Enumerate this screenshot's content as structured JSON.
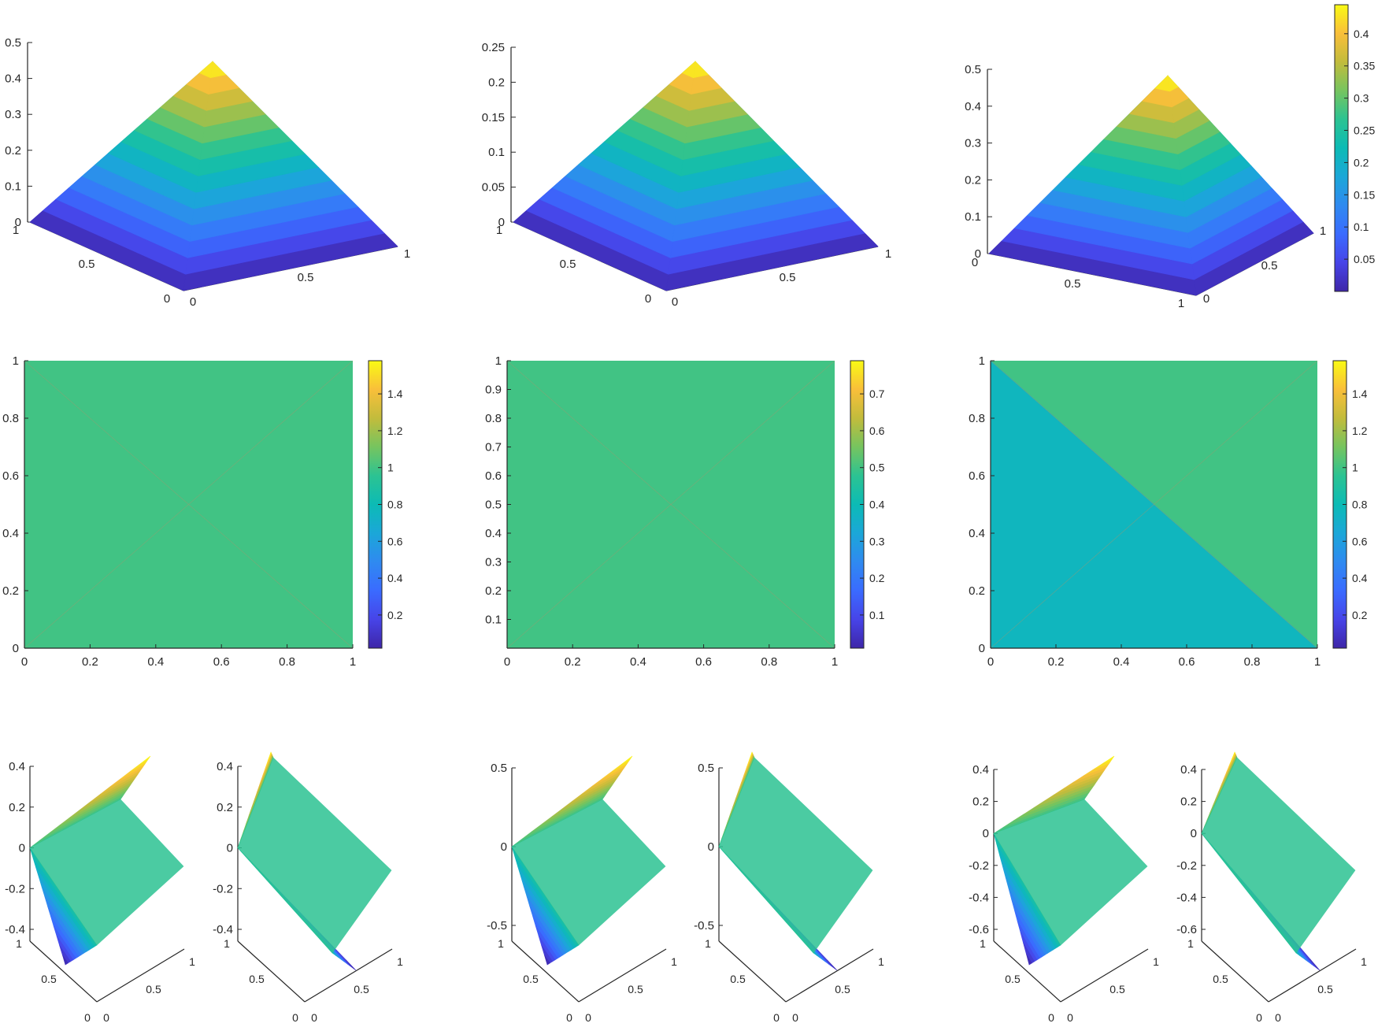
{
  "colormap": [
    "#3e26a8",
    "#4744e8",
    "#3a6bff",
    "#2f8af0",
    "#1ba7d8",
    "#0cbbb5",
    "#2cc392",
    "#76c45f",
    "#c2bc3c",
    "#f9bf3a",
    "#f9fa14"
  ],
  "chart_data": [
    {
      "id": "surf-1",
      "type": "surface",
      "view": "pyramid",
      "zlim": [
        0,
        0.5
      ],
      "zticks": [
        "0",
        "0.1",
        "0.2",
        "0.3",
        "0.4",
        "0.5"
      ],
      "xticks": [
        "0",
        "0.5",
        "1"
      ],
      "yticks": [
        "0",
        "0.5",
        "1"
      ],
      "peak": 0.45,
      "clim": [
        0,
        0.45
      ]
    },
    {
      "id": "surf-2",
      "type": "surface",
      "view": "pyramid",
      "zlim": [
        0,
        0.25
      ],
      "zticks": [
        "0",
        "0.05",
        "0.1",
        "0.15",
        "0.2",
        "0.25"
      ],
      "xticks": [
        "0",
        "0.5",
        "1"
      ],
      "yticks": [
        "0",
        "0.5",
        "1"
      ],
      "peak": 0.225,
      "clim": [
        0,
        0.225
      ]
    },
    {
      "id": "surf-3",
      "type": "surface",
      "view": "pyramid-rotated",
      "zlim": [
        0,
        0.5
      ],
      "zticks": [
        "0",
        "0.1",
        "0.2",
        "0.3",
        "0.4",
        "0.5"
      ],
      "xticks": [
        "0",
        "0.5",
        "1"
      ],
      "yticks": [
        "0",
        "0.5",
        "1"
      ],
      "peak": 0.45,
      "clim": [
        0,
        0.45
      ],
      "colorbar": {
        "ticks": [
          "0.05",
          "0.1",
          "0.15",
          "0.2",
          "0.25",
          "0.3",
          "0.35",
          "0.4"
        ],
        "values": [
          0.05,
          0.1,
          0.15,
          0.2,
          0.25,
          0.3,
          0.35,
          0.4
        ],
        "range": [
          0,
          0.445
        ]
      }
    },
    {
      "id": "map-1",
      "type": "heatmap",
      "xlim": [
        0,
        1
      ],
      "ylim": [
        0,
        1
      ],
      "xticks": [
        "0",
        "0.2",
        "0.4",
        "0.6",
        "0.8",
        "1"
      ],
      "yticks": [
        "0",
        "0.2",
        "0.4",
        "0.6",
        "0.8",
        "1"
      ],
      "fill_value": 1.0,
      "lower_value": null,
      "colorbar": {
        "ticks": [
          "0.2",
          "0.4",
          "0.6",
          "0.8",
          "1",
          "1.2",
          "1.4"
        ],
        "values": [
          0.2,
          0.4,
          0.6,
          0.8,
          1,
          1.2,
          1.4
        ],
        "range": [
          0.02,
          1.58
        ]
      }
    },
    {
      "id": "map-2",
      "type": "heatmap",
      "xlim": [
        0,
        1
      ],
      "ylim": [
        0,
        1
      ],
      "xticks": [
        "0",
        "0.2",
        "0.4",
        "0.6",
        "0.8",
        "1"
      ],
      "yticks": [
        "0.1",
        "0.2",
        "0.3",
        "0.4",
        "0.5",
        "0.6",
        "0.7",
        "0.8",
        "0.9",
        "1"
      ],
      "fill_value": 0.5,
      "lower_value": null,
      "colorbar": {
        "ticks": [
          "0.1",
          "0.2",
          "0.3",
          "0.4",
          "0.5",
          "0.6",
          "0.7"
        ],
        "values": [
          0.1,
          0.2,
          0.3,
          0.4,
          0.5,
          0.6,
          0.7
        ],
        "range": [
          0.01,
          0.79
        ]
      }
    },
    {
      "id": "map-3",
      "type": "heatmap",
      "xlim": [
        0,
        1
      ],
      "ylim": [
        0,
        1
      ],
      "xticks": [
        "0",
        "0.2",
        "0.4",
        "0.6",
        "0.8",
        "1"
      ],
      "yticks": [
        "0",
        "0.2",
        "0.4",
        "0.6",
        "0.8",
        "1"
      ],
      "fill_value": 1.0,
      "lower_value": 0.76,
      "colorbar": {
        "ticks": [
          "0.2",
          "0.4",
          "0.6",
          "0.8",
          "1",
          "1.2",
          "1.4"
        ],
        "values": [
          0.2,
          0.4,
          0.6,
          0.8,
          1,
          1.2,
          1.4
        ],
        "range": [
          0.02,
          1.58
        ]
      }
    },
    {
      "id": "sad-1a",
      "type": "surface",
      "view": "saddle-a",
      "zticks": [
        "-0.4",
        "-0.2",
        "0",
        "0.2",
        "0.4"
      ],
      "zvalues": [
        -0.4,
        -0.2,
        0,
        0.2,
        0.4
      ],
      "zlim": [
        -0.4,
        0.4
      ],
      "xticks": [
        "0",
        "0.5",
        "1"
      ],
      "yticks": [
        "0",
        "0.5",
        "1"
      ]
    },
    {
      "id": "sad-1b",
      "type": "surface",
      "view": "saddle-b",
      "zticks": [
        "-0.4",
        "-0.2",
        "0",
        "0.2",
        "0.4"
      ],
      "zvalues": [
        -0.4,
        -0.2,
        0,
        0.2,
        0.4
      ],
      "zlim": [
        -0.4,
        0.4
      ],
      "xticks": [
        "0",
        "0.5",
        "1"
      ],
      "yticks": [
        "0",
        "0.5",
        "1"
      ]
    },
    {
      "id": "sad-2a",
      "type": "surface",
      "view": "saddle-a",
      "zticks": [
        "-0.5",
        "0",
        "0.5"
      ],
      "zvalues": [
        -0.5,
        0,
        0.5
      ],
      "zlim": [
        -0.5,
        0.5
      ],
      "xticks": [
        "0",
        "0.5",
        "1"
      ],
      "yticks": [
        "0",
        "0.5",
        "1"
      ]
    },
    {
      "id": "sad-2b",
      "type": "surface",
      "view": "saddle-b",
      "zticks": [
        "-0.5",
        "0",
        "0.5"
      ],
      "zvalues": [
        -0.5,
        0,
        0.5
      ],
      "zlim": [
        -0.5,
        0.5
      ],
      "xticks": [
        "0",
        "0.5",
        "1"
      ],
      "yticks": [
        "0",
        "0.5",
        "1"
      ]
    },
    {
      "id": "sad-3a",
      "type": "surface",
      "view": "saddle-a",
      "zticks": [
        "-0.6",
        "-0.4",
        "-0.2",
        "0",
        "0.2",
        "0.4"
      ],
      "zvalues": [
        -0.6,
        -0.4,
        -0.2,
        0,
        0.2,
        0.4
      ],
      "zlim": [
        -0.6,
        0.4
      ],
      "xticks": [
        "0",
        "0.5",
        "1"
      ],
      "yticks": [
        "0",
        "0.5",
        "1"
      ]
    },
    {
      "id": "sad-3b",
      "type": "surface",
      "view": "saddle-b",
      "zticks": [
        "-0.6",
        "-0.4",
        "-0.2",
        "0",
        "0.2",
        "0.4"
      ],
      "zvalues": [
        -0.6,
        -0.4,
        -0.2,
        0,
        0.2,
        0.4
      ],
      "zlim": [
        -0.6,
        0.4
      ],
      "xticks": [
        "0",
        "0.5",
        "1"
      ],
      "yticks": [
        "0",
        "0.5",
        "1"
      ]
    }
  ]
}
